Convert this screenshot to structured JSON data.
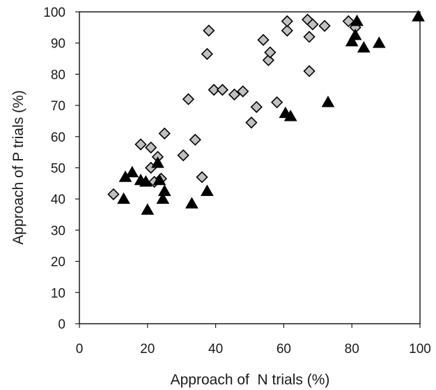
{
  "chart_data": {
    "type": "scatter",
    "title": "",
    "xlabel": "Approach of  N trials (%)",
    "ylabel": "Approach of P trials (%)",
    "xlim": [
      0,
      100
    ],
    "ylim": [
      0,
      100
    ],
    "xticks": [
      0,
      20,
      40,
      60,
      80,
      100
    ],
    "yticks": [
      0,
      10,
      20,
      30,
      40,
      50,
      60,
      70,
      80,
      90,
      100
    ],
    "grid": false,
    "legend": "none",
    "series": [
      {
        "marker": "diamond",
        "color": "#c0c0c0",
        "edge_color": "#000000",
        "points": [
          [
            10,
            41.5
          ],
          [
            18,
            57.5
          ],
          [
            21,
            56.5
          ],
          [
            21,
            50
          ],
          [
            22,
            45.5
          ],
          [
            23,
            53.5
          ],
          [
            24,
            46.5
          ],
          [
            25,
            61
          ],
          [
            30.5,
            54
          ],
          [
            32,
            72
          ],
          [
            34,
            59
          ],
          [
            36,
            47
          ],
          [
            37.5,
            86.5
          ],
          [
            38,
            94
          ],
          [
            39.5,
            75
          ],
          [
            42,
            75
          ],
          [
            45.5,
            73.5
          ],
          [
            48,
            74.5
          ],
          [
            50.5,
            64.5
          ],
          [
            52,
            69.5
          ],
          [
            54,
            91
          ],
          [
            55.5,
            84.5
          ],
          [
            56,
            87
          ],
          [
            58,
            71
          ],
          [
            61,
            94
          ],
          [
            61,
            97
          ],
          [
            67,
            97.5
          ],
          [
            67.5,
            92
          ],
          [
            67.5,
            81
          ],
          [
            68.5,
            96
          ],
          [
            72,
            95.5
          ],
          [
            79,
            97
          ],
          [
            81,
            95
          ]
        ]
      },
      {
        "marker": "triangle",
        "color": "#000000",
        "edge_color": "#000000",
        "points": [
          [
            13,
            40
          ],
          [
            13.5,
            47
          ],
          [
            15.5,
            48.5
          ],
          [
            18,
            46
          ],
          [
            19.5,
            45.5
          ],
          [
            20,
            36.5
          ],
          [
            23,
            51.5
          ],
          [
            23.5,
            46
          ],
          [
            24.5,
            40
          ],
          [
            25,
            42.5
          ],
          [
            33,
            38.5
          ],
          [
            37.5,
            42.5
          ],
          [
            60.5,
            67.5
          ],
          [
            62,
            66.5
          ],
          [
            73,
            71
          ],
          [
            80,
            90.5
          ],
          [
            81,
            92.5
          ],
          [
            81.5,
            97
          ],
          [
            83.5,
            88.5
          ],
          [
            88,
            90
          ],
          [
            99.5,
            98.5
          ]
        ]
      }
    ]
  }
}
